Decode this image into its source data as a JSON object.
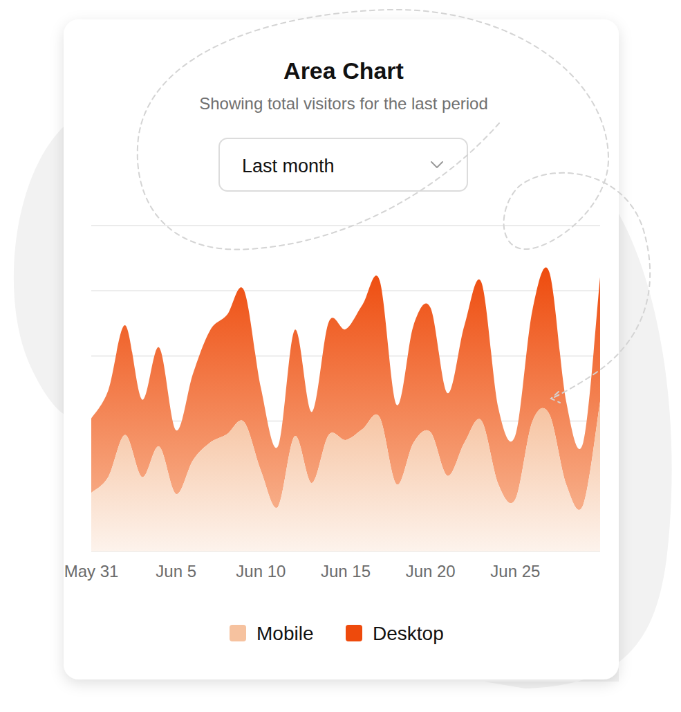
{
  "chart_data": {
    "type": "area",
    "title": "Area Chart",
    "subtitle": "Showing total visitors for the last period",
    "categories": [
      "May 31",
      null,
      null,
      null,
      null,
      "Jun 5",
      null,
      null,
      null,
      null,
      "Jun 10",
      null,
      null,
      null,
      null,
      "Jun 15",
      null,
      null,
      null,
      null,
      "Jun 20",
      null,
      null,
      null,
      null,
      "Jun 25",
      null,
      null,
      null,
      null,
      null
    ],
    "series": [
      {
        "name": "Mobile",
        "color": "#f6c29f",
        "values": [
          90,
          114,
          179,
          114,
          161,
          88,
          140,
          167,
          180,
          199,
          124,
          68,
          177,
          105,
          179,
          171,
          188,
          206,
          103,
          167,
          183,
          116,
          167,
          201,
          103,
          80,
          199,
          211,
          103,
          71,
          230
        ]
      },
      {
        "name": "Desktop",
        "color": "#ee4a0c",
        "values": [
          114,
          133,
          168,
          119,
          152,
          98,
          133,
          172,
          183,
          202,
          127,
          93,
          163,
          109,
          173,
          170,
          191,
          210,
          122,
          180,
          191,
          127,
          180,
          212,
          117,
          98,
          170,
          218,
          127,
          96,
          191
        ]
      }
    ],
    "stacked": true,
    "ylim": [
      0,
      500
    ],
    "yticks": [
      0,
      100,
      200,
      300,
      400,
      500
    ],
    "grid": true,
    "legend": "bottom",
    "tick_labels": "x"
  },
  "controls": {
    "period_select": "Last month"
  }
}
